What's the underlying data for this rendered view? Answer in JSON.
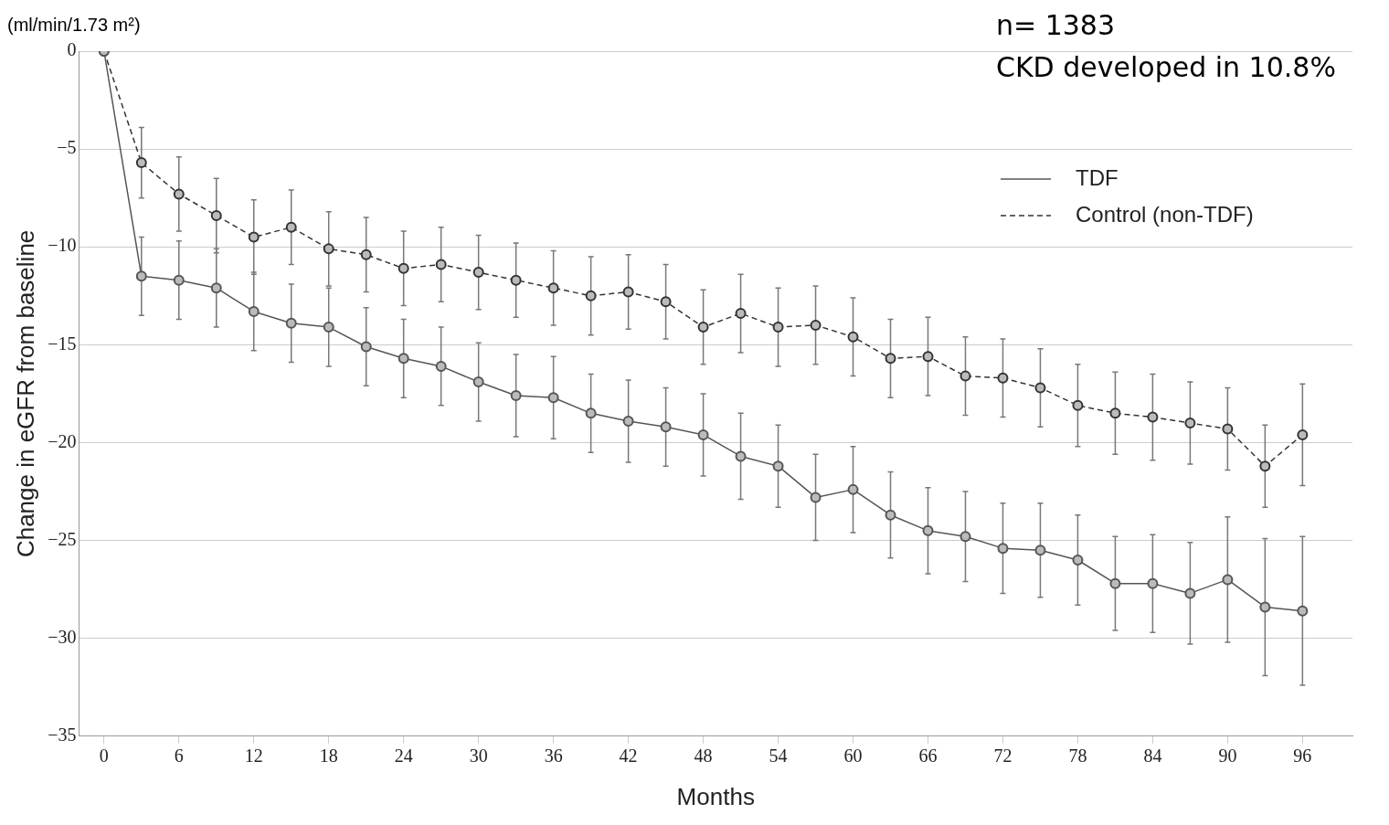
{
  "chart_data": {
    "type": "line",
    "xlabel": "Months",
    "ylabel": "Change in eGFR from baseline",
    "annotations": [
      "(ml/min/1.73 m²)",
      "n= 1383",
      "CKD developed in 10.8%"
    ],
    "x": [
      0,
      3,
      6,
      9,
      12,
      15,
      18,
      21,
      24,
      27,
      30,
      33,
      36,
      39,
      42,
      45,
      48,
      51,
      54,
      57,
      60,
      63,
      66,
      69,
      72,
      75,
      78,
      81,
      84,
      87,
      90,
      93,
      96
    ],
    "series": [
      {
        "name": "TDF",
        "color": "#555555",
        "line_style": "solid",
        "values": [
          0,
          -11.5,
          -11.7,
          -12.1,
          -13.3,
          -13.9,
          -14.1,
          -15.1,
          -15.7,
          -16.1,
          -16.9,
          -17.6,
          -17.7,
          -18.5,
          -18.9,
          -19.2,
          -19.6,
          -20.7,
          -21.2,
          -22.8,
          -22.4,
          -23.7,
          -24.5,
          -24.8,
          -25.4,
          -25.5,
          -26,
          -27.2,
          -27.2,
          -27.7,
          -27.0,
          -28.4,
          -28.6
        ],
        "errors": [
          null,
          2,
          2,
          2,
          2,
          2,
          2,
          2,
          2,
          2,
          2,
          2.1,
          2.1,
          2,
          2.1,
          2,
          2.1,
          2.2,
          2.1,
          2.2,
          2.2,
          2.2,
          2.2,
          2.3,
          2.3,
          2.4,
          2.3,
          2.4,
          2.5,
          2.6,
          3.2,
          3.5,
          3.8
        ]
      },
      {
        "name": "Control (non-TDF)",
        "color": "#333333",
        "line_style": "dashed",
        "values": [
          0,
          -5.7,
          -7.3,
          -8.4,
          -9.5,
          -9.0,
          -10.1,
          -10.4,
          -11.1,
          -10.9,
          -11.3,
          -11.7,
          -12.1,
          -12.5,
          -12.3,
          -12.8,
          -14.1,
          -13.4,
          -14.1,
          -14.0,
          -14.6,
          -15.7,
          -15.6,
          -16.6,
          -16.7,
          -17.2,
          -18.1,
          -18.5,
          -18.7,
          -19.0,
          -19.3,
          -21.2,
          -19.6
        ],
        "errors": [
          null,
          1.8,
          1.9,
          1.9,
          1.9,
          1.9,
          1.9,
          1.9,
          1.9,
          1.9,
          1.9,
          1.9,
          1.9,
          2,
          1.9,
          1.9,
          1.9,
          2,
          2,
          2,
          2,
          2,
          2,
          2,
          2,
          2,
          2.1,
          2.1,
          2.2,
          2.1,
          2.1,
          2.1,
          2.6
        ]
      }
    ],
    "xlim": [
      -2,
      100
    ],
    "xticks": [
      0,
      6,
      12,
      18,
      24,
      30,
      36,
      42,
      48,
      54,
      60,
      66,
      72,
      78,
      84,
      90,
      96
    ],
    "ylim": [
      -35,
      0
    ],
    "yticks": [
      -35,
      -30,
      -25,
      -20,
      -15,
      -10,
      -5,
      0
    ],
    "grid": "y",
    "legend": "top right",
    "marker": "circle"
  }
}
